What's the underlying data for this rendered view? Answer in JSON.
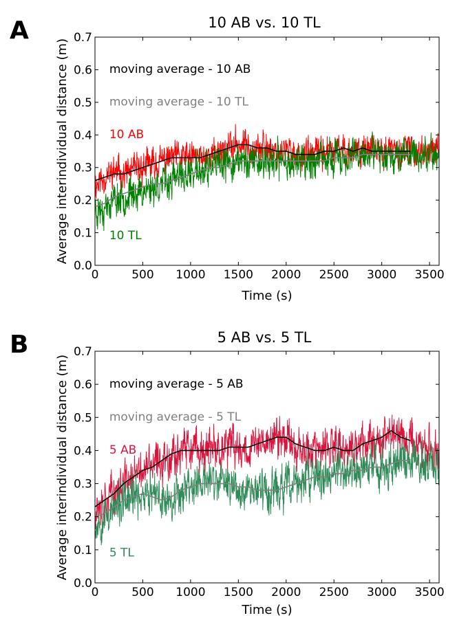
{
  "chart_data": [
    {
      "panel": "A",
      "type": "line",
      "title": "10 AB vs. 10 TL",
      "xlabel": "Time (s)",
      "ylabel": "Average interindividual distance (m)",
      "xlim": [
        0,
        3600
      ],
      "ylim": [
        0.0,
        0.7
      ],
      "xticks": [
        0,
        500,
        1000,
        1500,
        2000,
        2500,
        3000,
        3500
      ],
      "yticks": [
        "0.0",
        "0.1",
        "0.2",
        "0.3",
        "0.4",
        "0.5",
        "0.6",
        "0.7"
      ],
      "series": [
        {
          "name": "10 AB",
          "color": "#ff0000",
          "kind": "raw",
          "x": [
            0,
            100,
            200,
            300,
            400,
            500,
            600,
            700,
            800,
            900,
            1000,
            1100,
            1200,
            1300,
            1400,
            1500,
            1600,
            1700,
            1800,
            1900,
            2000,
            2100,
            2200,
            2300,
            2400,
            2500,
            2600,
            2700,
            2800,
            2900,
            3000,
            3100,
            3200,
            3300,
            3400,
            3500,
            3600
          ],
          "values": [
            0.25,
            0.27,
            0.29,
            0.28,
            0.29,
            0.3,
            0.31,
            0.32,
            0.33,
            0.33,
            0.33,
            0.33,
            0.34,
            0.35,
            0.36,
            0.37,
            0.37,
            0.36,
            0.36,
            0.35,
            0.35,
            0.34,
            0.34,
            0.34,
            0.35,
            0.35,
            0.35,
            0.35,
            0.36,
            0.35,
            0.35,
            0.35,
            0.35,
            0.35,
            0.35,
            0.35,
            0.35
          ],
          "noise": 0.045,
          "seed": 11
        },
        {
          "name": "10 TL",
          "color": "#008000",
          "kind": "raw",
          "x": [
            0,
            100,
            200,
            300,
            400,
            500,
            600,
            700,
            800,
            900,
            1000,
            1100,
            1200,
            1300,
            1400,
            1500,
            1600,
            1700,
            1800,
            1900,
            2000,
            2100,
            2200,
            2300,
            2400,
            2500,
            2600,
            2700,
            2800,
            2900,
            3000,
            3100,
            3200,
            3300,
            3400,
            3500,
            3600
          ],
          "values": [
            0.17,
            0.18,
            0.2,
            0.21,
            0.22,
            0.23,
            0.24,
            0.25,
            0.26,
            0.27,
            0.28,
            0.29,
            0.3,
            0.3,
            0.31,
            0.32,
            0.32,
            0.32,
            0.32,
            0.32,
            0.32,
            0.32,
            0.32,
            0.32,
            0.32,
            0.33,
            0.33,
            0.33,
            0.34,
            0.34,
            0.34,
            0.34,
            0.34,
            0.34,
            0.34,
            0.34,
            0.34
          ],
          "noise": 0.05,
          "seed": 23
        },
        {
          "name": "moving average - 10 AB",
          "color": "#000000",
          "kind": "avg",
          "x": [
            0,
            100,
            200,
            300,
            400,
            500,
            600,
            700,
            800,
            900,
            1000,
            1100,
            1200,
            1300,
            1400,
            1500,
            1600,
            1700,
            1800,
            1900,
            2000,
            2100,
            2200,
            2300,
            2400,
            2500,
            2600,
            2700,
            2800,
            2900,
            3000,
            3100,
            3200,
            3300
          ],
          "values": [
            0.26,
            0.27,
            0.28,
            0.28,
            0.29,
            0.3,
            0.31,
            0.32,
            0.33,
            0.33,
            0.33,
            0.33,
            0.34,
            0.35,
            0.36,
            0.37,
            0.37,
            0.36,
            0.36,
            0.35,
            0.35,
            0.34,
            0.34,
            0.34,
            0.35,
            0.35,
            0.36,
            0.35,
            0.36,
            0.35,
            0.35,
            0.35,
            0.35,
            0.35
          ],
          "noise": 0.0,
          "seed": 0
        },
        {
          "name": "moving average - 10 TL",
          "color": "#808080",
          "kind": "avg",
          "x": [
            0,
            100,
            200,
            300,
            400,
            500,
            600,
            700,
            800,
            900,
            1000,
            1100,
            1200,
            1300,
            1400,
            1500,
            1600,
            1700,
            1800,
            1900,
            2000,
            2100,
            2200,
            2300,
            2400,
            2500,
            2600,
            2700,
            2800,
            2900,
            3000,
            3100,
            3200,
            3300
          ],
          "values": [
            0.18,
            0.19,
            0.21,
            0.22,
            0.23,
            0.24,
            0.25,
            0.25,
            0.26,
            0.27,
            0.28,
            0.29,
            0.3,
            0.3,
            0.31,
            0.32,
            0.32,
            0.32,
            0.32,
            0.32,
            0.32,
            0.32,
            0.32,
            0.32,
            0.32,
            0.33,
            0.33,
            0.33,
            0.34,
            0.34,
            0.34,
            0.34,
            0.34,
            0.34
          ],
          "noise": 0.0,
          "seed": 0
        }
      ],
      "annotations": [
        {
          "text": "moving average - 10 AB",
          "color": "#000000",
          "x": 150,
          "y": 0.59
        },
        {
          "text": "moving average - 10 TL",
          "color": "#808080",
          "x": 150,
          "y": 0.49
        },
        {
          "text": "10 AB",
          "color": "#ff0000",
          "x": 150,
          "y": 0.39
        },
        {
          "text": "10 TL",
          "color": "#008000",
          "x": 150,
          "y": 0.08
        }
      ]
    },
    {
      "panel": "B",
      "type": "line",
      "title": "5 AB vs. 5 TL",
      "xlabel": "Time (s)",
      "ylabel": "Average interindividual distance (m)",
      "xlim": [
        0,
        3600
      ],
      "ylim": [
        0.0,
        0.7
      ],
      "xticks": [
        0,
        500,
        1000,
        1500,
        2000,
        2500,
        3000,
        3500
      ],
      "yticks": [
        "0.0",
        "0.1",
        "0.2",
        "0.3",
        "0.4",
        "0.5",
        "0.6",
        "0.7"
      ],
      "series": [
        {
          "name": "5 AB",
          "color": "#dc143c",
          "kind": "raw",
          "x": [
            0,
            100,
            200,
            300,
            400,
            500,
            600,
            700,
            800,
            900,
            1000,
            1100,
            1200,
            1300,
            1400,
            1500,
            1600,
            1700,
            1800,
            1900,
            2000,
            2100,
            2200,
            2300,
            2400,
            2500,
            2600,
            2700,
            2800,
            2900,
            3000,
            3100,
            3200,
            3300,
            3400,
            3500,
            3600
          ],
          "values": [
            0.23,
            0.25,
            0.27,
            0.3,
            0.32,
            0.34,
            0.35,
            0.37,
            0.39,
            0.4,
            0.4,
            0.4,
            0.4,
            0.4,
            0.41,
            0.41,
            0.41,
            0.42,
            0.43,
            0.44,
            0.44,
            0.42,
            0.41,
            0.4,
            0.4,
            0.41,
            0.4,
            0.4,
            0.42,
            0.43,
            0.44,
            0.46,
            0.44,
            0.43,
            0.42,
            0.4,
            0.38
          ],
          "noise": 0.06,
          "seed": 37
        },
        {
          "name": "5 TL",
          "color": "#2e8b57",
          "kind": "raw",
          "x": [
            0,
            100,
            200,
            300,
            400,
            500,
            600,
            700,
            800,
            900,
            1000,
            1100,
            1200,
            1300,
            1400,
            1500,
            1600,
            1700,
            1800,
            1900,
            2000,
            2100,
            2200,
            2300,
            2400,
            2500,
            2600,
            2700,
            2800,
            2900,
            3000,
            3100,
            3200,
            3300,
            3400,
            3500,
            3600
          ],
          "values": [
            0.18,
            0.2,
            0.22,
            0.24,
            0.26,
            0.27,
            0.26,
            0.25,
            0.26,
            0.28,
            0.3,
            0.3,
            0.31,
            0.3,
            0.3,
            0.29,
            0.29,
            0.28,
            0.28,
            0.28,
            0.29,
            0.3,
            0.31,
            0.32,
            0.32,
            0.33,
            0.33,
            0.34,
            0.34,
            0.35,
            0.35,
            0.36,
            0.37,
            0.37,
            0.37,
            0.37,
            0.37
          ],
          "noise": 0.06,
          "seed": 53
        },
        {
          "name": "moving average - 5 AB",
          "color": "#000000",
          "kind": "avg",
          "x": [
            0,
            100,
            200,
            300,
            400,
            500,
            600,
            700,
            800,
            900,
            1000,
            1100,
            1200,
            1300,
            1400,
            1500,
            1600,
            1700,
            1800,
            1900,
            2000,
            2100,
            2200,
            2300,
            2400,
            2500,
            2600,
            2700,
            2800,
            2900,
            3000,
            3100,
            3200,
            3300
          ],
          "values": [
            0.23,
            0.25,
            0.27,
            0.3,
            0.32,
            0.34,
            0.35,
            0.37,
            0.39,
            0.4,
            0.4,
            0.4,
            0.4,
            0.4,
            0.41,
            0.41,
            0.41,
            0.42,
            0.43,
            0.44,
            0.44,
            0.42,
            0.41,
            0.4,
            0.4,
            0.41,
            0.4,
            0.4,
            0.42,
            0.43,
            0.44,
            0.46,
            0.44,
            0.43
          ],
          "noise": 0.0,
          "seed": 0
        },
        {
          "name": "moving average - 5 TL",
          "color": "#808080",
          "kind": "avg",
          "x": [
            0,
            100,
            200,
            300,
            400,
            500,
            600,
            700,
            800,
            900,
            1000,
            1100,
            1200,
            1300,
            1400,
            1500,
            1600,
            1700,
            1800,
            1900,
            2000,
            2100,
            2200,
            2300,
            2400,
            2500,
            2600,
            2700,
            2800,
            2900,
            3000,
            3100,
            3200,
            3300
          ],
          "values": [
            0.2,
            0.21,
            0.23,
            0.25,
            0.26,
            0.27,
            0.26,
            0.25,
            0.26,
            0.28,
            0.29,
            0.3,
            0.3,
            0.3,
            0.3,
            0.29,
            0.29,
            0.28,
            0.28,
            0.28,
            0.29,
            0.3,
            0.31,
            0.32,
            0.32,
            0.33,
            0.33,
            0.34,
            0.34,
            0.35,
            0.35,
            0.36,
            0.37,
            0.37
          ],
          "noise": 0.0,
          "seed": 0
        }
      ],
      "annotations": [
        {
          "text": "moving average - 5 AB",
          "color": "#000000",
          "x": 150,
          "y": 0.59
        },
        {
          "text": "moving average - 5 TL",
          "color": "#808080",
          "x": 150,
          "y": 0.49
        },
        {
          "text": "5 AB",
          "color": "#dc143c",
          "x": 150,
          "y": 0.39
        },
        {
          "text": "5 TL",
          "color": "#2e8b57",
          "x": 150,
          "y": 0.08
        }
      ]
    }
  ]
}
